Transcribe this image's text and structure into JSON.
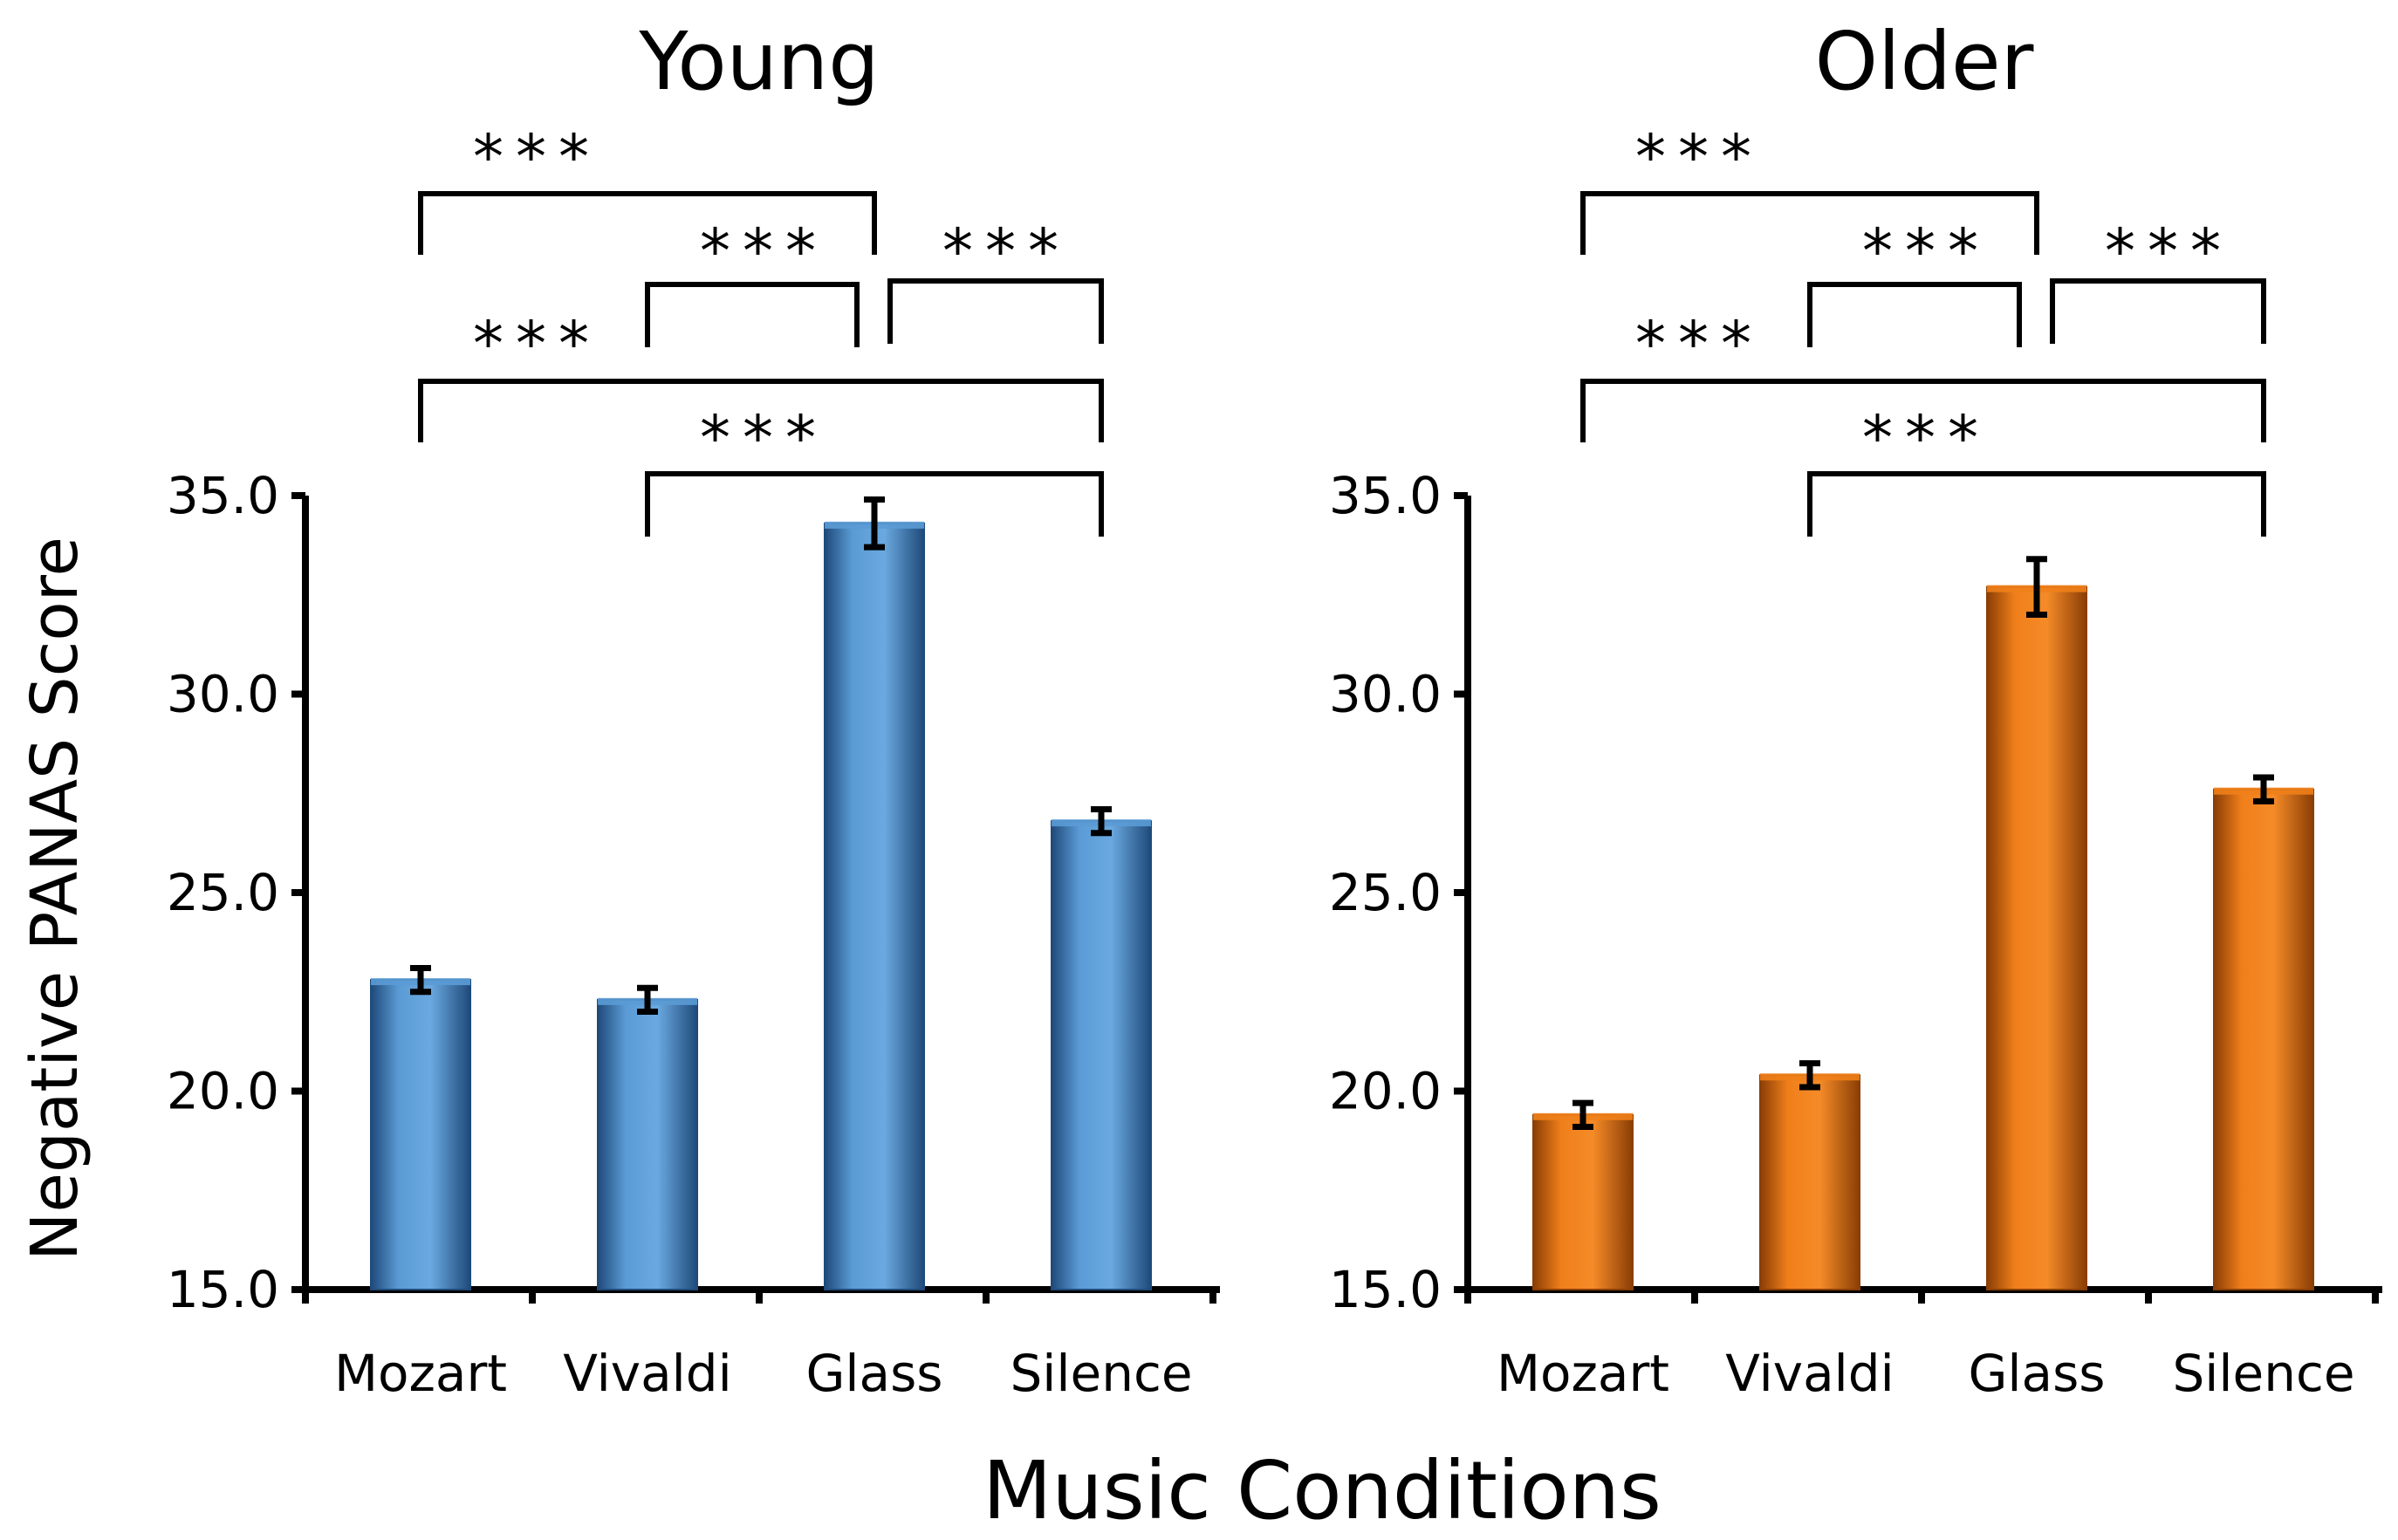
{
  "chart_data": [
    {
      "type": "bar",
      "title": "Young",
      "categories": [
        "Mozart",
        "Vivaldi",
        "Glass",
        "Silence"
      ],
      "values": [
        22.8,
        22.3,
        34.3,
        26.8
      ],
      "errors": [
        0.3,
        0.3,
        0.6,
        0.3
      ],
      "ylim": [
        15,
        35
      ],
      "yticks": [
        "15.0",
        "20.0",
        "25.0",
        "30.0",
        "35.0"
      ],
      "color": "#5b9bd5",
      "color_dark": "#1f4a7a",
      "significance": [
        {
          "from": 0,
          "to": 2,
          "label": "***"
        },
        {
          "from": 1,
          "to": 2,
          "label": "***"
        },
        {
          "from": 2,
          "to": 3,
          "label": "***"
        },
        {
          "from": 0,
          "to": 3,
          "label": "***"
        },
        {
          "from": 1,
          "to": 3,
          "label": "***"
        }
      ]
    },
    {
      "type": "bar",
      "title": "Older",
      "categories": [
        "Mozart",
        "Vivaldi",
        "Glass",
        "Silence"
      ],
      "values": [
        19.4,
        20.4,
        32.7,
        27.6
      ],
      "errors": [
        0.3,
        0.3,
        0.7,
        0.3
      ],
      "ylim": [
        15,
        35
      ],
      "yticks": [
        "15.0",
        "20.0",
        "25.0",
        "30.0",
        "35.0"
      ],
      "color": "#f07f1a",
      "color_dark": "#8a3e05",
      "significance": [
        {
          "from": 0,
          "to": 2,
          "label": "***"
        },
        {
          "from": 1,
          "to": 2,
          "label": "***"
        },
        {
          "from": 2,
          "to": 3,
          "label": "***"
        },
        {
          "from": 0,
          "to": 3,
          "label": "***"
        },
        {
          "from": 1,
          "to": 3,
          "label": "***"
        }
      ]
    }
  ],
  "ylabel": "Negative PANAS Score",
  "xlabel": "Music Conditions"
}
